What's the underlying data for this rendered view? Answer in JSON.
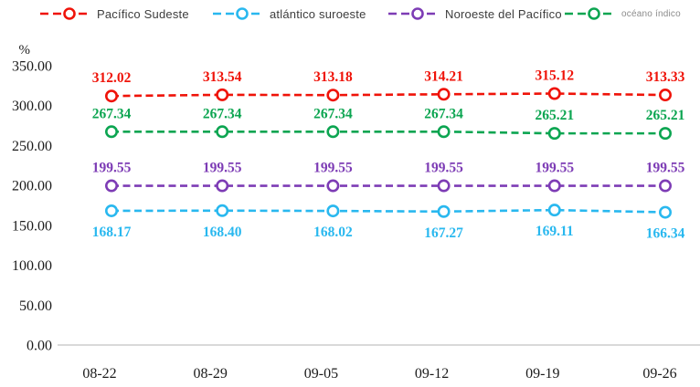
{
  "chart_data": {
    "type": "line",
    "title": "",
    "ylabel": "%",
    "xlabel": "",
    "grid": false,
    "legend_position": "top",
    "ylim": [
      0,
      350
    ],
    "y_ticks": [
      "350.00",
      "300.00",
      "250.00",
      "200.00",
      "150.00",
      "100.00",
      "50.00",
      "0.00"
    ],
    "categories": [
      "08-22",
      "08-29",
      "09-05",
      "09-12",
      "09-19",
      "09-26"
    ],
    "decimals": 2,
    "axis_line_color": "#d9d9d9",
    "tick_text_color": "#1b1b1b",
    "series": [
      {
        "id": "pacifico-sudeste",
        "name": "Pacífico Sudeste",
        "color": "#ef1309",
        "values": [
          312.02,
          313.54,
          313.18,
          314.21,
          315.12,
          313.33
        ],
        "label_position": "above"
      },
      {
        "id": "atlantico-suroeste",
        "name": "atlántico suroeste",
        "color": "#29b8ef",
        "values": [
          168.17,
          168.4,
          168.02,
          167.27,
          169.11,
          166.34
        ],
        "label_position": "below"
      },
      {
        "id": "noroeste-del-pacifico",
        "name": "Noroeste del Pacífico",
        "color": "#7d3cb5",
        "values": [
          199.55,
          199.55,
          199.55,
          199.55,
          199.55,
          199.55
        ],
        "label_position": "above"
      },
      {
        "id": "oceano-indico",
        "name": "océano índico",
        "color": "#0ca551",
        "values": [
          267.34,
          267.34,
          267.34,
          267.34,
          265.21,
          265.21
        ],
        "label_position": "above"
      }
    ]
  }
}
